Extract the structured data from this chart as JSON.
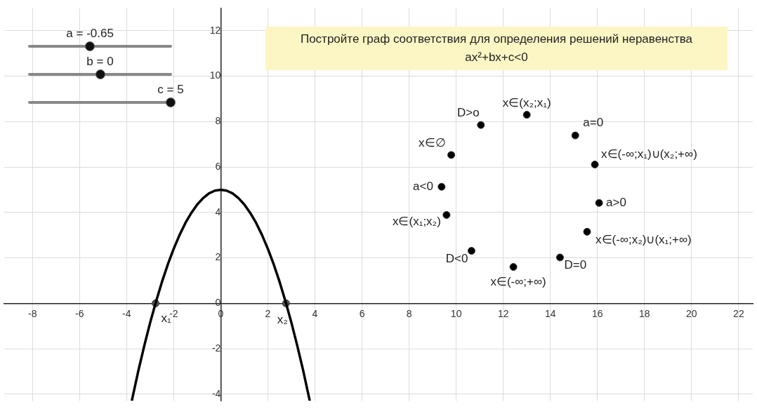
{
  "chart_data": {
    "type": "line",
    "title": "Постройте граф соответствия для определения решений неравенства",
    "subtitle": "ax²+bx+c<0",
    "xlim": [
      -9.2,
      22.6
    ],
    "ylim": [
      -4.3,
      13
    ],
    "xticks": [
      -8,
      -6,
      -4,
      -2,
      0,
      2,
      4,
      6,
      8,
      10,
      12,
      14,
      16,
      18,
      20,
      22
    ],
    "yticks": [
      -4,
      -2,
      0,
      2,
      4,
      6,
      8,
      10,
      12
    ],
    "grid": true,
    "series": [
      {
        "color": "#000000",
        "marker": "none",
        "x": [
          -3.78,
          -3.5,
          -3.25,
          -3,
          -2.75,
          -2.5,
          -2.25,
          -2,
          -1.75,
          -1.5,
          -1.25,
          -1,
          -0.75,
          -0.5,
          -0.25,
          0,
          0.25,
          0.5,
          0.75,
          1,
          1.25,
          1.5,
          1.75,
          2,
          2.25,
          2.5,
          2.75,
          3,
          3.25,
          3.5,
          3.78
        ],
        "values": [
          -4.29,
          -2.96,
          -1.87,
          -0.85,
          0.08,
          0.94,
          1.71,
          2.4,
          3.01,
          3.54,
          3.98,
          4.35,
          4.63,
          4.84,
          4.96,
          5,
          4.96,
          4.84,
          4.63,
          4.35,
          3.98,
          3.54,
          3.01,
          2.4,
          1.71,
          0.94,
          0.08,
          -0.85,
          -1.87,
          -2.96,
          -4.29
        ]
      },
      {
        "type": "scatter",
        "color": "#555555",
        "marker": "circle",
        "x": [
          -2.77,
          2.77
        ],
        "values": [
          0,
          0
        ]
      },
      {
        "type": "scatter",
        "color": "#000000",
        "marker": "circle",
        "x": [
          13,
          11.05,
          15.06,
          9.79,
          15.89,
          9.38,
          16.07,
          9.59,
          15.56,
          10.65,
          14.41,
          12.43
        ],
        "values": [
          8.3,
          7.85,
          7.39,
          6.53,
          6.11,
          5.13,
          4.42,
          3.89,
          3.15,
          2.31,
          2.02,
          1.6
        ]
      }
    ],
    "annotations": [
      "a = -0.65",
      "b = 0",
      "c = 5",
      {
        "text": "x∈(x₂;x₁)",
        "x": 13,
        "y": 8.3
      },
      {
        "text": "D>o",
        "x": 11.05,
        "y": 7.85
      },
      {
        "text": "a=0",
        "x": 15.06,
        "y": 7.39
      },
      {
        "text": "x∈∅",
        "x": 9.79,
        "y": 6.53
      },
      {
        "text": "x∈(-∞;x₁)∪(x₂;+∞)",
        "x": 15.89,
        "y": 6.11
      },
      {
        "text": "a<0",
        "x": 9.38,
        "y": 5.13
      },
      {
        "text": "a>0",
        "x": 16.07,
        "y": 4.42
      },
      {
        "text": "x∈(x₁;x₂)",
        "x": 9.59,
        "y": 3.89
      },
      {
        "text": "x∈(-∞;x₂)∪(x₁;+∞)",
        "x": 15.56,
        "y": 3.15
      },
      {
        "text": "D<0",
        "x": 10.65,
        "y": 2.31
      },
      {
        "text": "D=0",
        "x": 14.41,
        "y": 2.02
      },
      {
        "text": "x∈(-∞;+∞)",
        "x": 12.43,
        "y": 1.6
      },
      {
        "text": "x₁",
        "x": -2.77,
        "y": 0
      },
      {
        "text": "x₂",
        "x": 2.77,
        "y": 0
      }
    ]
  }
}
